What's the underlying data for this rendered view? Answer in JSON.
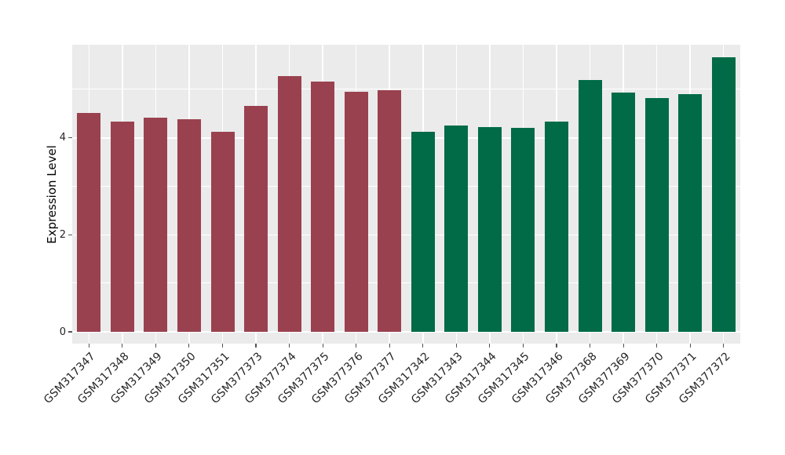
{
  "chart_data": {
    "type": "bar",
    "title": "",
    "xlabel": "",
    "ylabel": "Expression Level",
    "legend_position": "none",
    "grid": "on",
    "categories": [
      "GSM317347",
      "GSM317348",
      "GSM317349",
      "GSM317350",
      "GSM317351",
      "GSM377373",
      "GSM377374",
      "GSM377375",
      "GSM377376",
      "GSM377377",
      "GSM317342",
      "GSM317343",
      "GSM317344",
      "GSM317345",
      "GSM317346",
      "GSM377368",
      "GSM377369",
      "GSM377370",
      "GSM377371",
      "GSM377372"
    ],
    "values": [
      4.51,
      4.34,
      4.42,
      4.38,
      4.12,
      4.66,
      5.27,
      5.17,
      4.96,
      4.98,
      4.13,
      4.25,
      4.23,
      4.2,
      4.34,
      5.2,
      4.93,
      4.82,
      4.91,
      5.66
    ],
    "bar_groups": [
      "group1",
      "group1",
      "group1",
      "group1",
      "group1",
      "group1",
      "group1",
      "group1",
      "group1",
      "group1",
      "group2",
      "group2",
      "group2",
      "group2",
      "group2",
      "group2",
      "group2",
      "group2",
      "group2",
      "group2"
    ],
    "group_colors": {
      "group1": "#9A4150",
      "group2": "#006B46"
    },
    "yticks": [
      0,
      2,
      4
    ],
    "minor_yticks": [
      1,
      3,
      5
    ],
    "ylim": [
      -0.25,
      5.92
    ],
    "panel_bg_color": "#EBEBEB",
    "grid_color": "#FFFFFF",
    "tick_color": "#555555",
    "text_color": "#262626"
  }
}
